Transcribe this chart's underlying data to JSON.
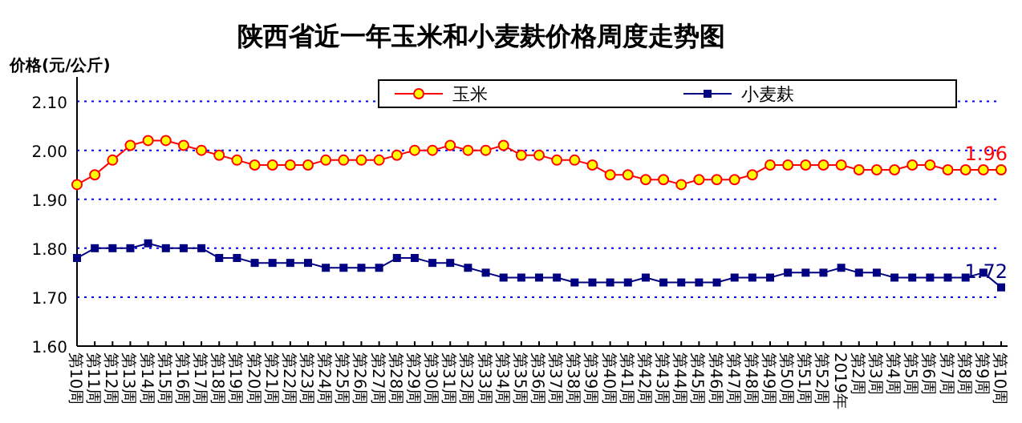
{
  "chart_data": {
    "type": "line",
    "title": "陕西省近一年玉米和小麦麸价格周度走势图",
    "ylabel": "价格(元/公斤)",
    "categories": [
      "第10周",
      "第11周",
      "第12周",
      "第13周",
      "第14周",
      "第15周",
      "第16周",
      "第17周",
      "第18周",
      "第19周",
      "第20周",
      "第21周",
      "第22周",
      "第23周",
      "第24周",
      "第25周",
      "第26周",
      "第27周",
      "第28周",
      "第29周",
      "第30周",
      "第31周",
      "第32周",
      "第33周",
      "第34周",
      "第35周",
      "第36周",
      "第37周",
      "第38周",
      "第39周",
      "第40周",
      "第41周",
      "第42周",
      "第43周",
      "第44周",
      "第45周",
      "第46周",
      "第47周",
      "第48周",
      "第49周",
      "第50周",
      "第51周",
      "第52周",
      "2019年",
      "第2周",
      "第3周",
      "第4周",
      "第5周",
      "第6周",
      "第7周",
      "第8周",
      "第9周",
      "第10周"
    ],
    "series": [
      {
        "name": "玉米",
        "color": "#ff0000",
        "marker": "circle",
        "values": [
          1.93,
          1.95,
          1.98,
          2.01,
          2.02,
          2.02,
          2.01,
          2.0,
          1.99,
          1.98,
          1.97,
          1.97,
          1.97,
          1.97,
          1.98,
          1.98,
          1.98,
          1.98,
          1.99,
          2.0,
          2.0,
          2.01,
          2.0,
          2.0,
          2.01,
          1.99,
          1.99,
          1.98,
          1.98,
          1.97,
          1.95,
          1.95,
          1.94,
          1.94,
          1.93,
          1.94,
          1.94,
          1.94,
          1.95,
          1.97,
          1.97,
          1.97,
          1.97,
          1.97,
          1.96,
          1.96,
          1.96,
          1.97,
          1.97,
          1.96,
          1.96,
          1.96,
          1.96
        ],
        "value_labels": [
          null,
          null,
          null,
          null,
          null,
          null,
          null,
          null,
          null,
          null,
          null,
          null,
          null,
          null,
          null,
          null,
          null,
          null,
          null,
          null,
          null,
          null,
          null,
          null,
          null,
          null,
          null,
          null,
          null,
          null,
          null,
          null,
          null,
          null,
          null,
          null,
          null,
          null,
          null,
          null,
          null,
          null,
          null,
          null,
          null,
          null,
          null,
          null,
          null,
          null,
          null,
          null,
          "1.96"
        ]
      },
      {
        "name": "小麦麸",
        "color": "#000080",
        "marker": "square",
        "values": [
          1.78,
          1.8,
          1.8,
          1.8,
          1.81,
          1.8,
          1.8,
          1.8,
          1.78,
          1.78,
          1.77,
          1.77,
          1.77,
          1.77,
          1.76,
          1.76,
          1.76,
          1.76,
          1.78,
          1.78,
          1.77,
          1.77,
          1.76,
          1.75,
          1.74,
          1.74,
          1.74,
          1.74,
          1.73,
          1.73,
          1.73,
          1.73,
          1.74,
          1.73,
          1.73,
          1.73,
          1.73,
          1.74,
          1.74,
          1.74,
          1.75,
          1.75,
          1.75,
          1.76,
          1.75,
          1.75,
          1.74,
          1.74,
          1.74,
          1.74,
          1.74,
          1.75,
          1.72
        ],
        "value_labels": [
          null,
          null,
          null,
          null,
          null,
          null,
          null,
          null,
          null,
          null,
          null,
          null,
          null,
          null,
          null,
          null,
          null,
          null,
          null,
          null,
          null,
          null,
          null,
          null,
          null,
          null,
          null,
          null,
          null,
          null,
          null,
          null,
          null,
          null,
          null,
          null,
          null,
          null,
          null,
          null,
          null,
          null,
          null,
          null,
          null,
          null,
          null,
          null,
          null,
          null,
          null,
          null,
          "1.72"
        ]
      }
    ],
    "ylim": [
      1.6,
      2.15
    ],
    "yticks": [
      {
        "value": 1.6,
        "label": "1.60"
      },
      {
        "value": 1.7,
        "label": "1.70"
      },
      {
        "value": 1.8,
        "label": "1.80"
      },
      {
        "value": 1.9,
        "label": "1.90"
      },
      {
        "value": 2.0,
        "label": "2.00"
      },
      {
        "value": 2.1,
        "label": "2.10"
      }
    ],
    "grid": "y",
    "legend": "top"
  }
}
